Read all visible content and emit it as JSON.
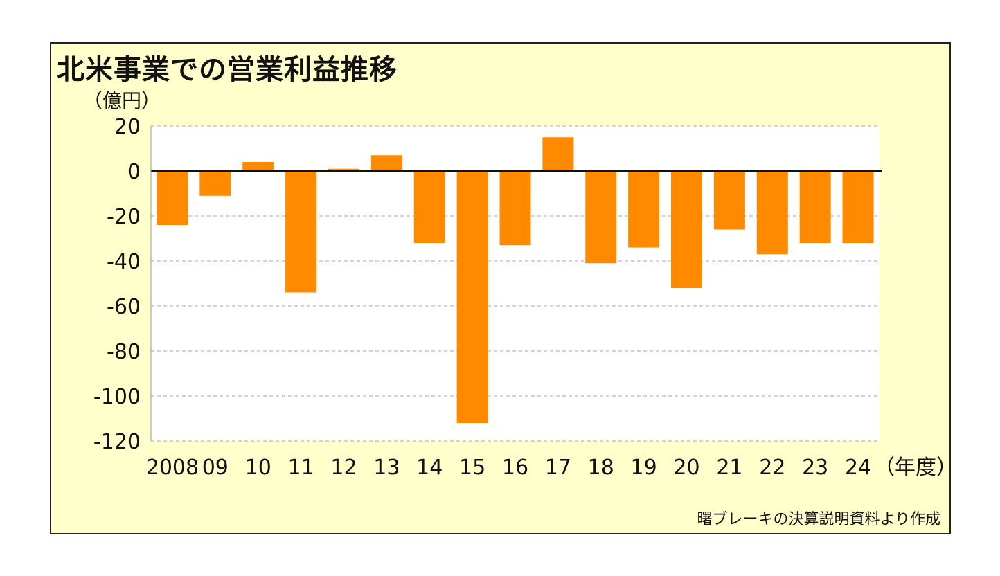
{
  "title": "北米事業での営業利益推移",
  "unit_label": "（億円）",
  "source_note": "曙ブレーキの決算説明資料より作成",
  "colors": {
    "bar": "#ff8a00",
    "plot_bg": "#ffffff",
    "frame_bg": "#ffffcc",
    "grid": "#bbbbbb"
  },
  "chart_data": {
    "type": "bar",
    "categories": [
      "2008",
      "09",
      "10",
      "11",
      "12",
      "13",
      "14",
      "15",
      "16",
      "17",
      "18",
      "19",
      "20",
      "21",
      "22",
      "23",
      "24"
    ],
    "x_unit_label": "（年度）",
    "values": [
      -24,
      -11,
      4,
      -54,
      1,
      7,
      -32,
      -112,
      -33,
      15,
      -41,
      -34,
      -52,
      -26,
      -37,
      -32,
      -32
    ],
    "ylim": [
      -120,
      20
    ],
    "yticks": [
      20,
      0,
      -20,
      -40,
      -60,
      -80,
      -100,
      -120
    ],
    "ylabel": "（億円）",
    "grid": true,
    "legend": "none"
  }
}
